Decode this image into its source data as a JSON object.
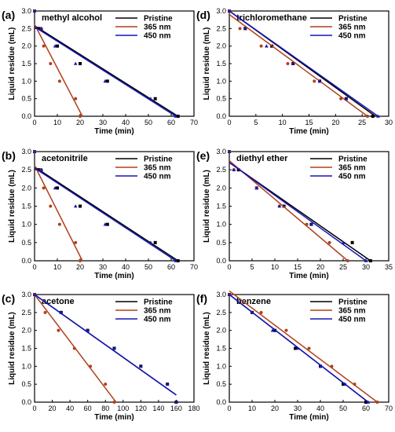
{
  "colors": {
    "pristine": "#000000",
    "nm365": "#b0401c",
    "nm450": "#1515b8"
  },
  "chart_data": [
    {
      "id": "a",
      "type": "line",
      "panel_label": "(a)",
      "title": "methyl alcohol",
      "xlabel": "Time (min)",
      "ylabel": "Liquid residue (mL)",
      "xlim": [
        0,
        70
      ],
      "ylim": [
        0,
        3.0
      ],
      "xticks": [
        "0",
        "10",
        "20",
        "30",
        "40",
        "50",
        "60",
        "70"
      ],
      "yticks": [
        "0.0",
        "0.5",
        "1.0",
        "1.5",
        "2.0",
        "2.5",
        "3.0"
      ],
      "legend": [
        "Pristine",
        "365 nm",
        "450 nm"
      ],
      "series": [
        {
          "name": "Pristine",
          "points": [
            [
              0,
              3.0
            ],
            [
              2,
              2.5
            ],
            [
              10,
              2.0
            ],
            [
              20,
              1.5
            ],
            [
              32,
              1.0
            ],
            [
              53,
              0.5
            ],
            [
              63,
              0.0
            ]
          ],
          "fit": [
            [
              0,
              2.58
            ],
            [
              63,
              0.0
            ]
          ]
        },
        {
          "name": "365 nm",
          "points": [
            [
              0,
              3.0
            ],
            [
              3,
              2.5
            ],
            [
              4,
              2.0
            ],
            [
              7,
              1.5
            ],
            [
              11,
              1.0
            ],
            [
              18,
              0.5
            ],
            [
              20,
              0.0
            ]
          ],
          "fit": [
            [
              0,
              2.62
            ],
            [
              21,
              0.0
            ]
          ]
        },
        {
          "name": "450 nm",
          "points": [
            [
              0,
              3.0
            ],
            [
              3,
              2.5
            ],
            [
              9,
              2.0
            ],
            [
              18,
              1.5
            ],
            [
              31,
              1.0
            ],
            [
              51,
              0.5
            ],
            [
              62,
              0.0
            ]
          ],
          "fit": [
            [
              0,
              2.55
            ],
            [
              62,
              0.0
            ]
          ]
        }
      ]
    },
    {
      "id": "d",
      "type": "line",
      "panel_label": "(d)",
      "title": "trichloromethane",
      "xlabel": "Time (min)",
      "ylabel": "Liquid residue (mL)",
      "xlim": [
        0,
        30
      ],
      "ylim": [
        0,
        3.0
      ],
      "xticks": [
        "0",
        "5",
        "10",
        "15",
        "20",
        "25",
        "30"
      ],
      "yticks": [
        "0.0",
        "0.5",
        "1.0",
        "1.5",
        "2.0",
        "2.5",
        "3.0"
      ],
      "legend": [
        "Pristine",
        "365 nm",
        "450 nm"
      ],
      "series": [
        {
          "name": "Pristine",
          "points": [
            [
              0,
              3.0
            ],
            [
              3,
              2.5
            ],
            [
              8,
              2.0
            ],
            [
              12,
              1.5
            ],
            [
              17,
              1.0
            ],
            [
              22,
              0.5
            ],
            [
              27,
              0.0
            ]
          ],
          "fit": [
            [
              0,
              3.0
            ],
            [
              27.5,
              0.0
            ]
          ]
        },
        {
          "name": "365 nm",
          "points": [
            [
              0,
              3.0
            ],
            [
              2,
              2.5
            ],
            [
              6,
              2.0
            ],
            [
              11,
              1.5
            ],
            [
              16,
              1.0
            ],
            [
              21,
              0.5
            ],
            [
              26,
              0.0
            ]
          ],
          "fit": [
            [
              0,
              2.9
            ],
            [
              26,
              0.0
            ]
          ]
        },
        {
          "name": "450 nm",
          "points": [
            [
              0,
              3.0
            ],
            [
              3,
              2.5
            ],
            [
              7,
              2.0
            ],
            [
              12,
              1.5
            ],
            [
              17,
              1.0
            ],
            [
              22,
              0.5
            ],
            [
              28,
              0.0
            ]
          ],
          "fit": [
            [
              0,
              3.0
            ],
            [
              28,
              0.0
            ]
          ]
        }
      ]
    },
    {
      "id": "b",
      "type": "line",
      "panel_label": "(b)",
      "title": "acetonitrile",
      "xlabel": "Time (min)",
      "ylabel": "Liquid residue (mL)",
      "xlim": [
        0,
        70
      ],
      "ylim": [
        0,
        3.0
      ],
      "xticks": [
        "0",
        "10",
        "20",
        "30",
        "40",
        "50",
        "60",
        "70"
      ],
      "yticks": [
        "0.0",
        "0.5",
        "1.0",
        "1.5",
        "2.0",
        "2.5",
        "3.0"
      ],
      "legend": [
        "Pristine",
        "365 nm",
        "450 nm"
      ],
      "series": [
        {
          "name": "Pristine",
          "points": [
            [
              0,
              3.0
            ],
            [
              2,
              2.5
            ],
            [
              10,
              2.0
            ],
            [
              20,
              1.5
            ],
            [
              32,
              1.0
            ],
            [
              53,
              0.5
            ],
            [
              63,
              0.0
            ]
          ],
          "fit": [
            [
              0,
              2.58
            ],
            [
              63,
              0.0
            ]
          ]
        },
        {
          "name": "365 nm",
          "points": [
            [
              0,
              3.0
            ],
            [
              3,
              2.5
            ],
            [
              4,
              2.0
            ],
            [
              7,
              1.5
            ],
            [
              11,
              1.0
            ],
            [
              18,
              0.5
            ],
            [
              20,
              0.0
            ]
          ],
          "fit": [
            [
              0,
              2.62
            ],
            [
              21,
              0.0
            ]
          ]
        },
        {
          "name": "450 nm",
          "points": [
            [
              0,
              3.0
            ],
            [
              3,
              2.5
            ],
            [
              9,
              2.0
            ],
            [
              18,
              1.5
            ],
            [
              31,
              1.0
            ],
            [
              51,
              0.5
            ],
            [
              62,
              0.0
            ]
          ],
          "fit": [
            [
              0,
              2.55
            ],
            [
              62,
              0.0
            ]
          ]
        }
      ]
    },
    {
      "id": "e",
      "type": "line",
      "panel_label": "(e)",
      "title": "diethyl ether",
      "xlabel": "Time (min)",
      "ylabel": "Liquid residue (mL)",
      "xlim": [
        0,
        35
      ],
      "ylim": [
        0,
        3.0
      ],
      "xticks": [
        "0",
        "5",
        "10",
        "15",
        "20",
        "25",
        "30",
        "35"
      ],
      "yticks": [
        "0.0",
        "0.5",
        "1.0",
        "1.5",
        "2.0",
        "2.5",
        "3.0"
      ],
      "legend": [
        "Pristine",
        "365 nm",
        "450 nm"
      ],
      "series": [
        {
          "name": "Pristine",
          "points": [
            [
              0,
              3.0
            ],
            [
              2,
              2.5
            ],
            [
              6,
              2.0
            ],
            [
              12,
              1.5
            ],
            [
              18,
              1.0
            ],
            [
              27,
              0.5
            ],
            [
              31,
              0.0
            ]
          ],
          "fit": [
            [
              0,
              2.7
            ],
            [
              31,
              0.0
            ]
          ]
        },
        {
          "name": "365 nm",
          "points": [
            [
              0,
              3.0
            ],
            [
              1,
              2.5
            ],
            [
              6,
              2.0
            ],
            [
              11,
              1.5
            ],
            [
              17,
              1.0
            ],
            [
              22,
              0.5
            ],
            [
              26,
              0.0
            ]
          ],
          "fit": [
            [
              0,
              2.75
            ],
            [
              26,
              0.0
            ]
          ]
        },
        {
          "name": "450 nm",
          "points": [
            [
              0,
              3.0
            ],
            [
              1,
              2.5
            ],
            [
              6,
              2.0
            ],
            [
              11,
              1.5
            ],
            [
              18,
              1.0
            ],
            [
              25,
              0.5
            ],
            [
              30,
              0.0
            ]
          ],
          "fit": [
            [
              0,
              2.7
            ],
            [
              30,
              0.0
            ]
          ]
        }
      ]
    },
    {
      "id": "c",
      "type": "line",
      "panel_label": "(c)",
      "title": "acetone",
      "xlabel": "Time (min)",
      "ylabel": "Liquid residue (mL)",
      "xlim": [
        0,
        180
      ],
      "ylim": [
        0,
        3.0
      ],
      "xticks": [
        "0",
        "20",
        "40",
        "60",
        "80",
        "100",
        "120",
        "140",
        "160",
        "180"
      ],
      "yticks": [
        "0.0",
        "0.5",
        "1.0",
        "1.5",
        "2.0",
        "2.5",
        "3.0"
      ],
      "legend": [
        "Pristine",
        "365 nm",
        "450 nm"
      ],
      "series": [
        {
          "name": "Pristine",
          "points": [
            [
              0,
              3.0
            ],
            [
              30,
              2.5
            ],
            [
              60,
              2.0
            ],
            [
              90,
              1.5
            ],
            [
              120,
              1.0
            ],
            [
              150,
              0.5
            ],
            [
              160,
              0.0
            ]
          ],
          "fit": [
            [
              0,
              3.0
            ],
            [
              160,
              0.2
            ]
          ]
        },
        {
          "name": "365 nm",
          "points": [
            [
              0,
              3.0
            ],
            [
              12,
              2.5
            ],
            [
              27,
              2.0
            ],
            [
              45,
              1.5
            ],
            [
              63,
              1.0
            ],
            [
              80,
              0.5
            ],
            [
              90,
              0.0
            ]
          ],
          "fit": [
            [
              0,
              3.0
            ],
            [
              92,
              0.0
            ]
          ]
        },
        {
          "name": "450 nm",
          "points": [
            [
              0,
              3.0
            ],
            [
              30,
              2.5
            ],
            [
              60,
              2.0
            ],
            [
              90,
              1.5
            ],
            [
              120,
              1.0
            ],
            [
              150,
              0.5
            ],
            [
              160,
              0.0
            ]
          ],
          "fit": [
            [
              0,
              3.0
            ],
            [
              160,
              0.2
            ]
          ]
        }
      ]
    },
    {
      "id": "f",
      "type": "line",
      "panel_label": "(f)",
      "title": "benzene",
      "xlabel": "Time (min)",
      "ylabel": "Liquid residue (mL)",
      "xlim": [
        0,
        70
      ],
      "ylim": [
        0,
        3.0
      ],
      "xticks": [
        "0",
        "10",
        "20",
        "30",
        "40",
        "50",
        "60",
        "70"
      ],
      "yticks": [
        "0.0",
        "0.5",
        "1.0",
        "1.5",
        "2.0",
        "2.5",
        "3.0"
      ],
      "legend": [
        "Pristine",
        "365 nm",
        "450 nm"
      ],
      "series": [
        {
          "name": "Pristine",
          "points": [
            [
              0,
              3.0
            ],
            [
              10,
              2.5
            ],
            [
              20,
              2.0
            ],
            [
              29,
              1.5
            ],
            [
              40,
              1.0
            ],
            [
              50,
              0.5
            ],
            [
              60,
              0.0
            ]
          ],
          "fit": [
            [
              0,
              3.0
            ],
            [
              61,
              0.0
            ]
          ]
        },
        {
          "name": "365 nm",
          "points": [
            [
              0,
              3.0
            ],
            [
              14,
              2.5
            ],
            [
              25,
              2.0
            ],
            [
              35,
              1.5
            ],
            [
              45,
              1.0
            ],
            [
              55,
              0.5
            ],
            [
              65,
              0.0
            ]
          ],
          "fit": [
            [
              0,
              3.1
            ],
            [
              65,
              0.0
            ]
          ]
        },
        {
          "name": "450 nm",
          "points": [
            [
              0,
              3.0
            ],
            [
              10,
              2.5
            ],
            [
              19,
              2.0
            ],
            [
              30,
              1.5
            ],
            [
              40,
              1.0
            ],
            [
              51,
              0.5
            ],
            [
              61,
              0.0
            ]
          ],
          "fit": [
            [
              0,
              3.0
            ],
            [
              61,
              0.0
            ]
          ]
        }
      ]
    }
  ]
}
